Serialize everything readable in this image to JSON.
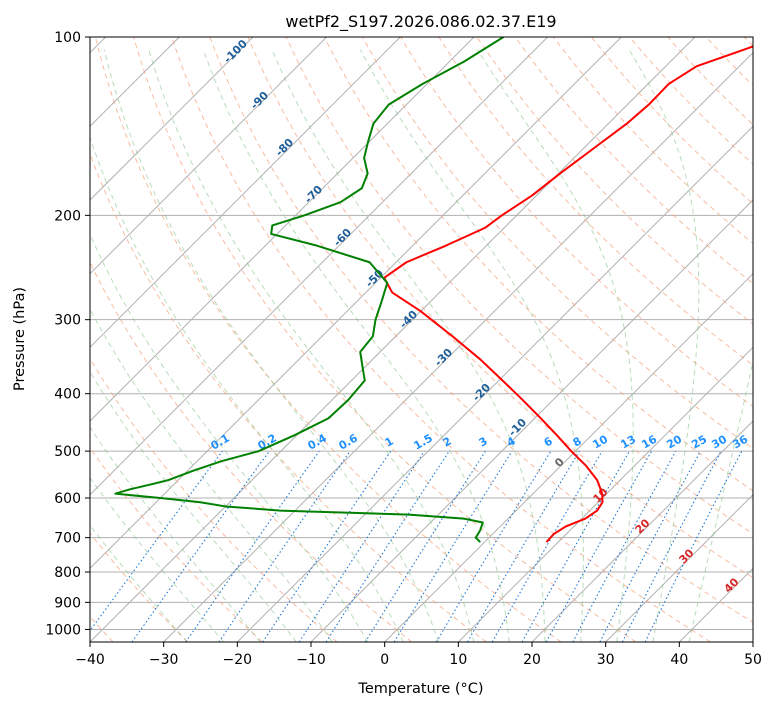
{
  "chart_data": {
    "type": "line",
    "title": "wetPf2_S197.2026.086.02.37.E19",
    "xlabel": "Temperature (°C)",
    "ylabel": "Pressure (hPa)",
    "xlim": [
      -40,
      50
    ],
    "ylim": [
      1050,
      100
    ],
    "y_scale": "log",
    "grid": true,
    "x_ticks": [
      -40,
      -30,
      -20,
      -10,
      0,
      10,
      20,
      30,
      40,
      50
    ],
    "y_ticks": [
      100,
      200,
      300,
      400,
      500,
      600,
      700,
      800,
      900,
      1000
    ],
    "x_tick_labels": [
      "−40",
      "−30",
      "−20",
      "−10",
      "0",
      "10",
      "20",
      "30",
      "40",
      "50"
    ],
    "y_tick_labels": [
      "100",
      "200",
      "300",
      "400",
      "500",
      "600",
      "700",
      "800",
      "900",
      "1000"
    ],
    "series": [
      {
        "color": "#ff0000",
        "pressure": [
          712,
          690,
          670,
          650,
          630,
          610,
          590,
          560,
          530,
          500,
          470,
          440,
          410,
          380,
          350,
          320,
          290,
          270,
          255,
          240,
          225,
          210,
          200,
          185,
          170,
          155,
          140,
          130,
          120,
          112,
          106,
          100
        ],
        "temperature": [
          8.4,
          8.3,
          8.9,
          10.5,
          11.0,
          10.6,
          9.4,
          6.9,
          3.5,
          -0.6,
          -4.7,
          -9.2,
          -14.1,
          -19.5,
          -25.4,
          -32.3,
          -40.1,
          -46.4,
          -49.5,
          -48.6,
          -45.5,
          -42.6,
          -42.0,
          -40.6,
          -39.8,
          -38.7,
          -37.5,
          -37.1,
          -37.2,
          -35.8,
          -32.2,
          -28.5
        ]
      },
      {
        "color": "#008000",
        "pressure": [
          712,
          700,
          680,
          660,
          650,
          640,
          630,
          620,
          610,
          600,
          590,
          580,
          570,
          560,
          540,
          520,
          500,
          470,
          440,
          410,
          380,
          360,
          340,
          320,
          300,
          280,
          260,
          240,
          225,
          215,
          208,
          200,
          190,
          180,
          170,
          160,
          150,
          140,
          130,
          120,
          110,
          100
        ],
        "temperature": [
          -0.6,
          -1.8,
          -2.2,
          -2.9,
          -6.0,
          -14.0,
          -32.0,
          -40.0,
          -44.0,
          -50.0,
          -56.7,
          -55.3,
          -53.3,
          -51.4,
          -49.3,
          -46.7,
          -43.0,
          -40.3,
          -38.0,
          -37.8,
          -38.2,
          -40.4,
          -42.7,
          -43.1,
          -45.0,
          -46.6,
          -48.4,
          -53.6,
          -63.0,
          -70.8,
          -71.8,
          -68.8,
          -65.7,
          -64.7,
          -65.9,
          -68.5,
          -70.2,
          -71.9,
          -72.4,
          -70.6,
          -68.0,
          -66.0
        ]
      }
    ],
    "dry_adiabat_labels": [
      "-100",
      "-90",
      "-80",
      "-70",
      "-60",
      "-50",
      "-40",
      "-30",
      "-20",
      "-10"
    ],
    "moist_adiabat_labels": [
      "0",
      "10",
      "20",
      "30",
      "40"
    ],
    "mixing_ratio_labels": [
      "0.1",
      "0.2",
      "0.4",
      "0.6",
      "1",
      "1.5",
      "2",
      "3",
      "4",
      "6",
      "8",
      "10",
      "13",
      "16",
      "20",
      "25",
      "30",
      "36"
    ]
  }
}
